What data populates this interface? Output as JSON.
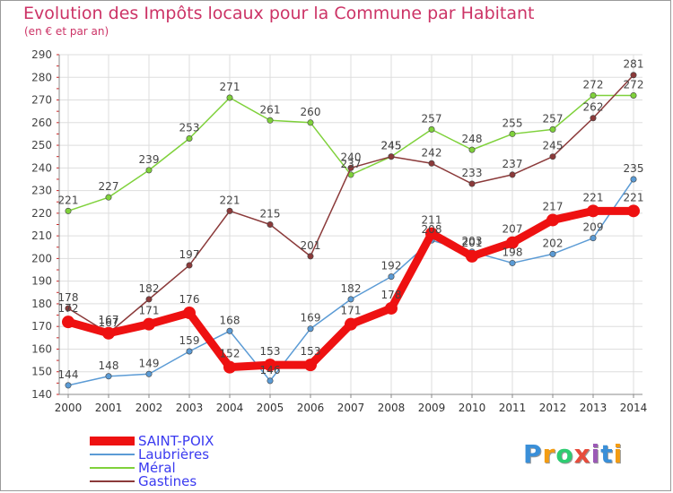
{
  "title": "Evolution des Impôts locaux pour la Commune par Habitant",
  "subtitle": "(en € et par an)",
  "logo": {
    "text": "Proxiti",
    "letters": [
      "P",
      "r",
      "o",
      "x",
      "i",
      "t",
      "i"
    ],
    "colors": [
      "#3a8fd8",
      "#f39c12",
      "#2ecc71",
      "#e74c3c",
      "#9b59b6",
      "#3a8fd8",
      "#f39c12"
    ]
  },
  "legend": {
    "items": [
      "SAINT-POIX",
      "Laubrières",
      "Méral",
      "Gastines"
    ]
  },
  "chart_data": {
    "type": "line",
    "x": [
      "2000",
      "2001",
      "2002",
      "2003",
      "2004",
      "2005",
      "2006",
      "2007",
      "2008",
      "2009",
      "2010",
      "2011",
      "2012",
      "2013",
      "2014"
    ],
    "ylim": [
      140,
      290
    ],
    "yticks": [
      140,
      150,
      160,
      170,
      180,
      190,
      200,
      210,
      220,
      230,
      240,
      250,
      260,
      270,
      280,
      290
    ],
    "grid": true,
    "series": [
      {
        "name": "Méral",
        "color": "#7fd13b",
        "values": [
          221,
          227,
          239,
          253,
          271,
          261,
          260,
          237,
          245,
          257,
          248,
          255,
          257,
          272,
          272
        ]
      },
      {
        "name": "Gastines",
        "color": "#8b3a3a",
        "values": [
          178,
          167,
          182,
          197,
          221,
          215,
          201,
          240,
          245,
          242,
          233,
          237,
          245,
          262,
          281
        ]
      },
      {
        "name": "Laubrières",
        "color": "#5b9bd5",
        "values": [
          144,
          148,
          149,
          159,
          168,
          146,
          169,
          182,
          192,
          208,
          203,
          198,
          202,
          209,
          235
        ]
      },
      {
        "name": "SAINT-POIX",
        "color": "#ee1111",
        "values": [
          172,
          167,
          171,
          176,
          152,
          153,
          153,
          171,
          178,
          211,
          201,
          207,
          217,
          221,
          221
        ]
      }
    ]
  }
}
